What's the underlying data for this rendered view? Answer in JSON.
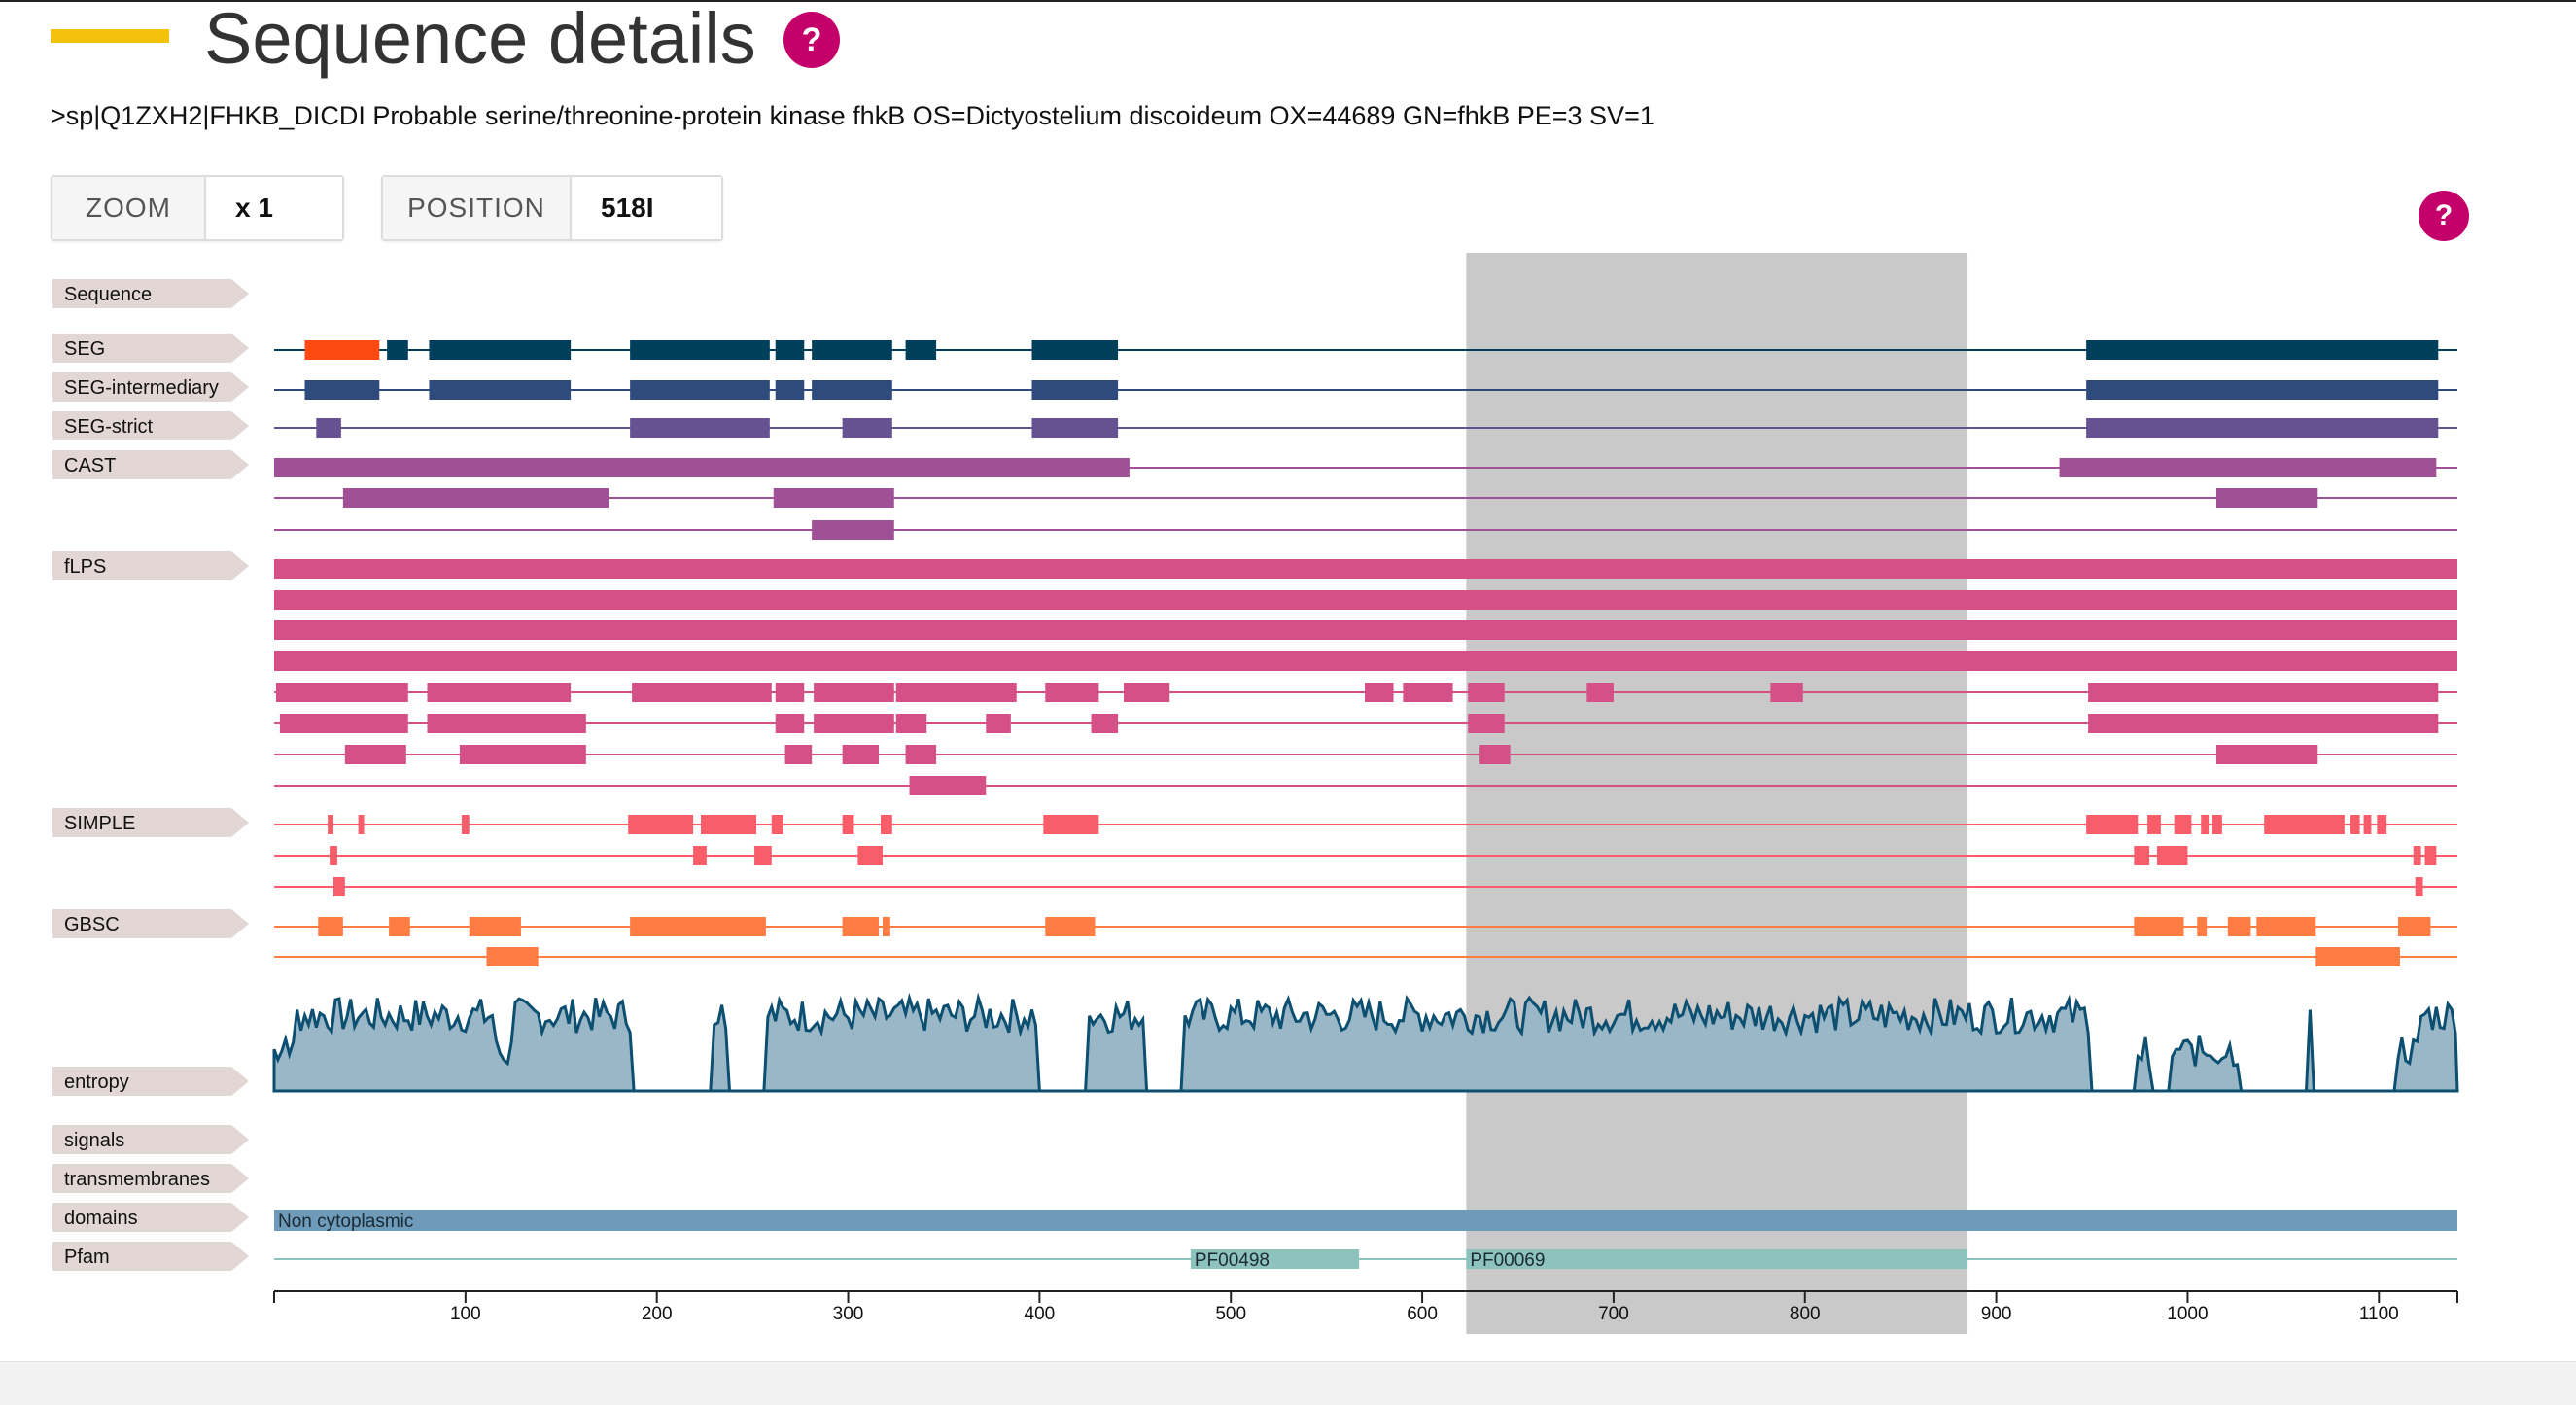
{
  "page": {
    "title": "Sequence details",
    "header": ">sp|Q1ZXH2|FHKB_DICDI Probable serine/threonine-protein kinase fhkB OS=Dictyostelium discoideum OX=44689 GN=fhkB PE=3 SV=1",
    "help_label": "?"
  },
  "controls": {
    "zoom": {
      "label": "ZOOM",
      "value": "x 1"
    },
    "position": {
      "label": "POSITION",
      "value": "518I"
    }
  },
  "viewer": {
    "sequence_length": 1141,
    "selection_range": [
      623,
      885
    ],
    "tracks": [
      {
        "name": "Sequence",
        "color": "#2a6b8f",
        "rows": []
      },
      {
        "name": "SEG",
        "color": "#003f5c",
        "rows": [
          [
            {
              "s": 16,
              "e": 55,
              "c": "#fd4a10"
            },
            {
              "s": 59,
              "e": 70
            },
            {
              "s": 81,
              "e": 155
            },
            {
              "s": 186,
              "e": 259
            },
            {
              "s": 262,
              "e": 277
            },
            {
              "s": 281,
              "e": 323
            },
            {
              "s": 330,
              "e": 346
            },
            {
              "s": 396,
              "e": 441
            },
            {
              "s": 947,
              "e": 1131
            }
          ]
        ]
      },
      {
        "name": "SEG-intermediary",
        "color": "#2f4b7c",
        "rows": [
          [
            {
              "s": 16,
              "e": 55
            },
            {
              "s": 81,
              "e": 155
            },
            {
              "s": 186,
              "e": 259
            },
            {
              "s": 262,
              "e": 277
            },
            {
              "s": 281,
              "e": 323
            },
            {
              "s": 396,
              "e": 441
            },
            {
              "s": 947,
              "e": 1131
            }
          ]
        ]
      },
      {
        "name": "SEG-strict",
        "color": "#665191",
        "rows": [
          [
            {
              "s": 22,
              "e": 35
            },
            {
              "s": 186,
              "e": 259
            },
            {
              "s": 297,
              "e": 323
            },
            {
              "s": 396,
              "e": 441
            },
            {
              "s": 947,
              "e": 1131
            }
          ]
        ]
      },
      {
        "name": "CAST",
        "color": "#a05195",
        "rows": [
          [
            {
              "s": 0,
              "e": 447
            },
            {
              "s": 933,
              "e": 1130
            }
          ],
          [
            {
              "s": 36,
              "e": 175
            },
            {
              "s": 261,
              "e": 324
            },
            {
              "s": 1015,
              "e": 1068
            }
          ],
          [
            {
              "s": 281,
              "e": 324
            }
          ]
        ]
      },
      {
        "name": "fLPS",
        "color": "#d45087",
        "rows": [
          [
            {
              "s": 0,
              "e": 1141
            }
          ],
          [
            {
              "s": 0,
              "e": 1141
            }
          ],
          [
            {
              "s": 0,
              "e": 1141
            }
          ],
          [
            {
              "s": 0,
              "e": 1141
            }
          ],
          [
            {
              "s": 1,
              "e": 70
            },
            {
              "s": 80,
              "e": 155
            },
            {
              "s": 187,
              "e": 260
            },
            {
              "s": 262,
              "e": 277
            },
            {
              "s": 282,
              "e": 324
            },
            {
              "s": 325,
              "e": 388
            },
            {
              "s": 403,
              "e": 431
            },
            {
              "s": 444,
              "e": 468
            },
            {
              "s": 570,
              "e": 585
            },
            {
              "s": 590,
              "e": 616
            },
            {
              "s": 624,
              "e": 643
            },
            {
              "s": 686,
              "e": 700
            },
            {
              "s": 782,
              "e": 799
            },
            {
              "s": 948,
              "e": 1131
            }
          ],
          [
            {
              "s": 3,
              "e": 70
            },
            {
              "s": 80,
              "e": 163
            },
            {
              "s": 262,
              "e": 277
            },
            {
              "s": 282,
              "e": 324
            },
            {
              "s": 325,
              "e": 341
            },
            {
              "s": 372,
              "e": 385
            },
            {
              "s": 427,
              "e": 441
            },
            {
              "s": 624,
              "e": 643
            },
            {
              "s": 948,
              "e": 1131
            }
          ],
          [
            {
              "s": 37,
              "e": 69
            },
            {
              "s": 97,
              "e": 163
            },
            {
              "s": 267,
              "e": 281
            },
            {
              "s": 297,
              "e": 316
            },
            {
              "s": 330,
              "e": 346
            },
            {
              "s": 630,
              "e": 646
            },
            {
              "s": 1015,
              "e": 1068
            }
          ],
          [
            {
              "s": 332,
              "e": 372
            }
          ]
        ]
      },
      {
        "name": "SIMPLE",
        "color": "#f95d6a",
        "rows": [
          [
            {
              "s": 28,
              "e": 31
            },
            {
              "s": 44,
              "e": 47
            },
            {
              "s": 98,
              "e": 102
            },
            {
              "s": 185,
              "e": 219
            },
            {
              "s": 223,
              "e": 252
            },
            {
              "s": 260,
              "e": 266
            },
            {
              "s": 297,
              "e": 303
            },
            {
              "s": 317,
              "e": 323
            },
            {
              "s": 402,
              "e": 431
            },
            {
              "s": 947,
              "e": 974
            },
            {
              "s": 979,
              "e": 986
            },
            {
              "s": 993,
              "e": 1002
            },
            {
              "s": 1007,
              "e": 1011
            },
            {
              "s": 1013,
              "e": 1018
            },
            {
              "s": 1040,
              "e": 1082
            },
            {
              "s": 1085,
              "e": 1090
            },
            {
              "s": 1092,
              "e": 1096
            },
            {
              "s": 1099,
              "e": 1104
            }
          ],
          [
            {
              "s": 29,
              "e": 33
            },
            {
              "s": 219,
              "e": 226
            },
            {
              "s": 251,
              "e": 260
            },
            {
              "s": 305,
              "e": 318
            },
            {
              "s": 972,
              "e": 980
            },
            {
              "s": 984,
              "e": 1000
            },
            {
              "s": 1118,
              "e": 1122
            },
            {
              "s": 1124,
              "e": 1130
            }
          ],
          [
            {
              "s": 31,
              "e": 37
            },
            {
              "s": 1119,
              "e": 1123
            }
          ]
        ]
      },
      {
        "name": "GBSC",
        "color": "#ff7c43",
        "rows": [
          [
            {
              "s": 23,
              "e": 36
            },
            {
              "s": 60,
              "e": 71
            },
            {
              "s": 102,
              "e": 129
            },
            {
              "s": 186,
              "e": 257
            },
            {
              "s": 297,
              "e": 316
            },
            {
              "s": 318,
              "e": 322
            },
            {
              "s": 403,
              "e": 429
            },
            {
              "s": 972,
              "e": 998
            },
            {
              "s": 1005,
              "e": 1010
            },
            {
              "s": 1021,
              "e": 1033
            },
            {
              "s": 1036,
              "e": 1067
            },
            {
              "s": 1110,
              "e": 1127
            }
          ],
          [
            {
              "s": 111,
              "e": 138
            },
            {
              "s": 1067,
              "e": 1111
            }
          ]
        ]
      },
      {
        "name": "entropy",
        "color": "#0d4f70",
        "fill": "#9ab7c8"
      },
      {
        "name": "signals",
        "color": "#2a6b8f",
        "rows": []
      },
      {
        "name": "transmembranes",
        "color": "#2a6b8f",
        "rows": []
      },
      {
        "name": "domains",
        "color": "#6f9bba",
        "rows": [
          [
            {
              "s": 0,
              "e": 1141,
              "label": "Non cytoplasmic"
            }
          ]
        ]
      },
      {
        "name": "Pfam",
        "color": "#8ec3bd",
        "rows": [
          [
            {
              "s": 479,
              "e": 567,
              "label": "PF00498"
            },
            {
              "s": 623,
              "e": 885,
              "label": "PF00069"
            }
          ]
        ]
      }
    ],
    "axis_ticks": [
      100,
      200,
      300,
      400,
      500,
      600,
      700,
      800,
      900,
      1000,
      1100
    ]
  }
}
